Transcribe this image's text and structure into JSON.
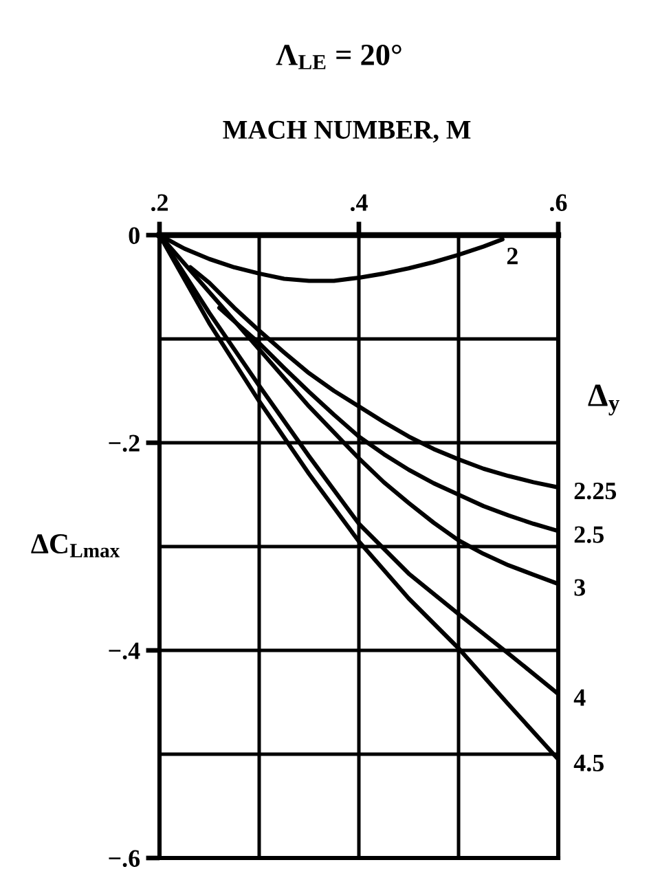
{
  "chart_data": {
    "type": "line",
    "title": "Λ$_{LE}$ = 20°",
    "xlabel": "MACH NUMBER, M",
    "ylabel": "ΔC$_{Lmax}$",
    "legend_title": "Δ$_{y}$",
    "xlim": [
      0.2,
      0.6
    ],
    "xticks": [
      {
        "value": 0.2,
        "label": ".2"
      },
      {
        "value": 0.3,
        "label": null
      },
      {
        "value": 0.4,
        "label": ".4"
      },
      {
        "value": 0.5,
        "label": null
      },
      {
        "value": 0.6,
        "label": ".6"
      }
    ],
    "ylim": [
      -0.6,
      0
    ],
    "yticks": [
      0,
      {
        "value": -0.1,
        "label": null
      },
      {
        "value": -0.2,
        "label": "−.2"
      },
      {
        "value": -0.3,
        "label": null
      },
      {
        "value": -0.4,
        "label": "−.4"
      },
      {
        "value": -0.5,
        "label": null
      },
      {
        "value": -0.6,
        "label": "−.6"
      }
    ],
    "grid": true,
    "series": [
      {
        "name": "2",
        "color": "#000000",
        "x": [
          0.2,
          0.225,
          0.25,
          0.275,
          0.3,
          0.325,
          0.35,
          0.375,
          0.4,
          0.425,
          0.45,
          0.475,
          0.5,
          0.525,
          0.544
        ],
        "values": [
          0,
          -0.013,
          -0.023,
          -0.031,
          -0.037,
          -0.042,
          -0.044,
          -0.044,
          -0.041,
          -0.037,
          -0.032,
          -0.026,
          -0.019,
          -0.011,
          -0.004
        ]
      },
      {
        "name": "2.25",
        "color": "#000000",
        "x": [
          0.231,
          0.25,
          0.275,
          0.3,
          0.325,
          0.35,
          0.375,
          0.4,
          0.425,
          0.45,
          0.475,
          0.5,
          0.525,
          0.55,
          0.575,
          0.6
        ],
        "values": [
          -0.031,
          -0.046,
          -0.07,
          -0.092,
          -0.113,
          -0.133,
          -0.15,
          -0.165,
          -0.18,
          -0.194,
          -0.206,
          -0.216,
          -0.225,
          -0.232,
          -0.238,
          -0.243
        ]
      },
      {
        "name": "2.5",
        "color": "#000000",
        "x": [
          0.26,
          0.275,
          0.3,
          0.325,
          0.35,
          0.375,
          0.4,
          0.425,
          0.45,
          0.475,
          0.5,
          0.525,
          0.55,
          0.575,
          0.6
        ],
        "values": [
          -0.07,
          -0.083,
          -0.104,
          -0.128,
          -0.151,
          -0.173,
          -0.194,
          -0.211,
          -0.226,
          -0.239,
          -0.25,
          -0.261,
          -0.27,
          -0.278,
          -0.285
        ]
      },
      {
        "name": "3",
        "color": "#000000",
        "x": [
          0.2,
          0.25,
          0.3,
          0.35,
          0.375,
          0.4,
          0.425,
          0.45,
          0.475,
          0.5,
          0.525,
          0.55,
          0.575,
          0.6
        ],
        "values": [
          0,
          -0.055,
          -0.11,
          -0.165,
          -0.19,
          -0.215,
          -0.238,
          -0.258,
          -0.277,
          -0.294,
          -0.307,
          -0.318,
          -0.327,
          -0.336
        ]
      },
      {
        "name": "4",
        "color": "#000000",
        "x": [
          0.2,
          0.25,
          0.3,
          0.35,
          0.4,
          0.45,
          0.5,
          0.55,
          0.6
        ],
        "values": [
          0,
          -0.075,
          -0.145,
          -0.213,
          -0.278,
          -0.326,
          -0.365,
          -0.403,
          -0.442
        ]
      },
      {
        "name": "4.5",
        "color": "#000000",
        "x": [
          0.2,
          0.25,
          0.3,
          0.35,
          0.4,
          0.45,
          0.5,
          0.55,
          0.6
        ],
        "values": [
          0,
          -0.085,
          -0.16,
          -0.23,
          -0.295,
          -0.35,
          -0.398,
          -0.452,
          -0.505
        ]
      }
    ]
  }
}
